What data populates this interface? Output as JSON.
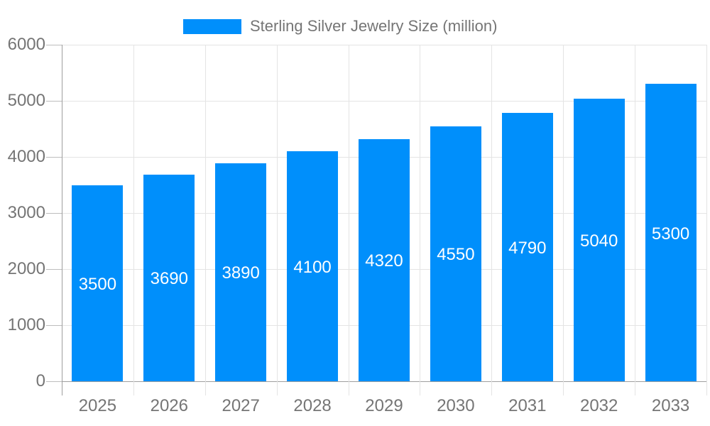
{
  "chart_data": {
    "type": "bar",
    "title": "Sterling Silver Jewelry Size (million)",
    "legend": "Sterling Silver Jewelry Size (million)",
    "categories": [
      "2025",
      "2026",
      "2027",
      "2028",
      "2029",
      "2030",
      "2031",
      "2032",
      "2033"
    ],
    "values": [
      3500,
      3690,
      3890,
      4100,
      4320,
      4550,
      4790,
      5040,
      5300
    ],
    "xlabel": "",
    "ylabel": "",
    "ylim": [
      0,
      6000
    ],
    "yticks": [
      0,
      1000,
      2000,
      3000,
      4000,
      5000,
      6000
    ],
    "grid": true,
    "legend_position": "top",
    "bar_labels_inside": true,
    "colors": {
      "bar": "#008ffb",
      "bar_label": "#ffffff",
      "axis_label": "#757575",
      "legend_text": "#757575",
      "axis_line": "#9e9e9e",
      "grid_line": "#e4e4e4",
      "tick_line": "#bdbdbd"
    }
  }
}
